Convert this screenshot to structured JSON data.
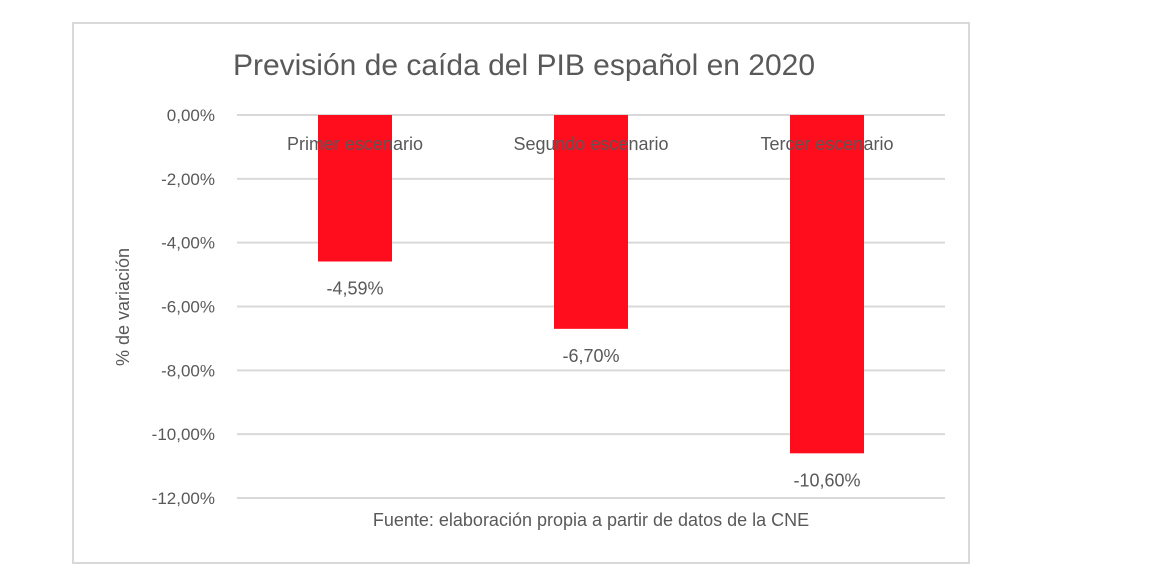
{
  "chart_data": {
    "type": "bar",
    "title": "Previsión de caída del PIB español en 2020",
    "ylabel": "% de variación",
    "xlabel": "Fuente: elaboración propia a partir de datos de la CNE",
    "categories": [
      "Primer escenario",
      "Segundo escenario",
      "Tercer escenario"
    ],
    "values": [
      -4.59,
      -6.7,
      -10.6
    ],
    "data_labels": [
      "-4,59%",
      "-6,70%",
      "-10,60%"
    ],
    "ylim": [
      -12,
      0
    ],
    "yticks": [
      0,
      -2,
      -4,
      -6,
      -8,
      -10,
      -12
    ],
    "ytick_labels": [
      "0,00%",
      "-2,00%",
      "-4,00%",
      "-6,00%",
      "-8,00%",
      "-10,00%",
      "-12,00%"
    ],
    "grid": true,
    "bar_color": "#ff0d1d",
    "legend": "none"
  }
}
